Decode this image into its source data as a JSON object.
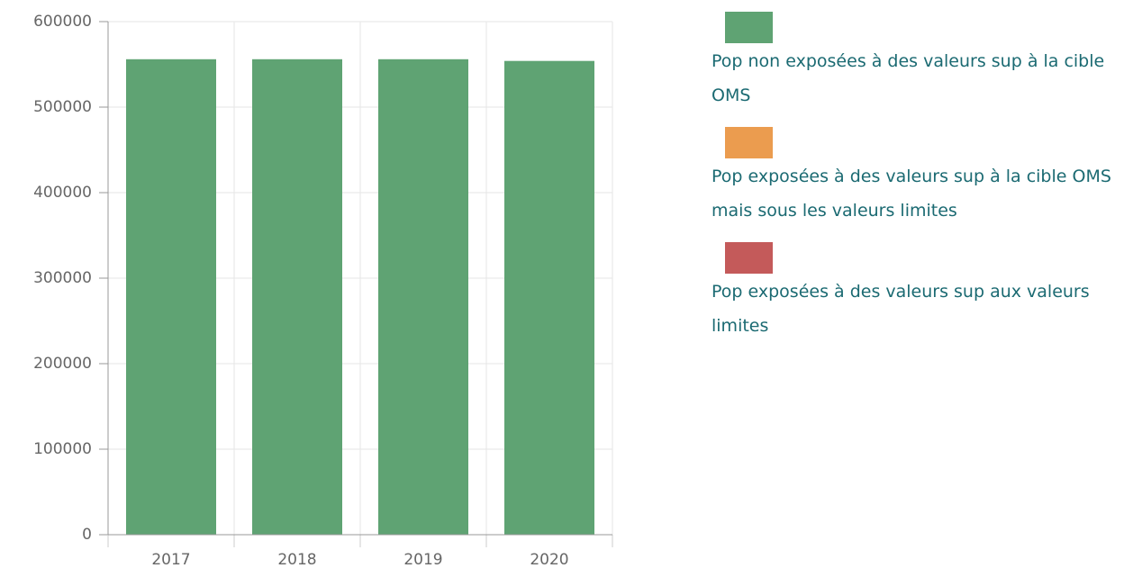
{
  "chart_data": {
    "type": "bar",
    "stacked": true,
    "categories": [
      "2017",
      "2018",
      "2019",
      "2020"
    ],
    "series": [
      {
        "name": "Pop non exposées à des valeurs sup à la cible OMS",
        "color": "#5fa373",
        "values": [
          556000,
          556000,
          556000,
          554000
        ]
      },
      {
        "name": "Pop exposées à des valeurs sup à la cible OMS mais sous les valeurs limites",
        "color": "#eb9c4f",
        "values": [
          0,
          0,
          0,
          0
        ]
      },
      {
        "name": "Pop exposées à des valeurs sup aux valeurs limites",
        "color": "#c45a5a",
        "values": [
          0,
          0,
          0,
          0
        ]
      }
    ],
    "ylim": [
      0,
      600000
    ],
    "yticks": [
      0,
      100000,
      200000,
      300000,
      400000,
      500000,
      600000
    ],
    "grid": true,
    "legend": "right"
  }
}
